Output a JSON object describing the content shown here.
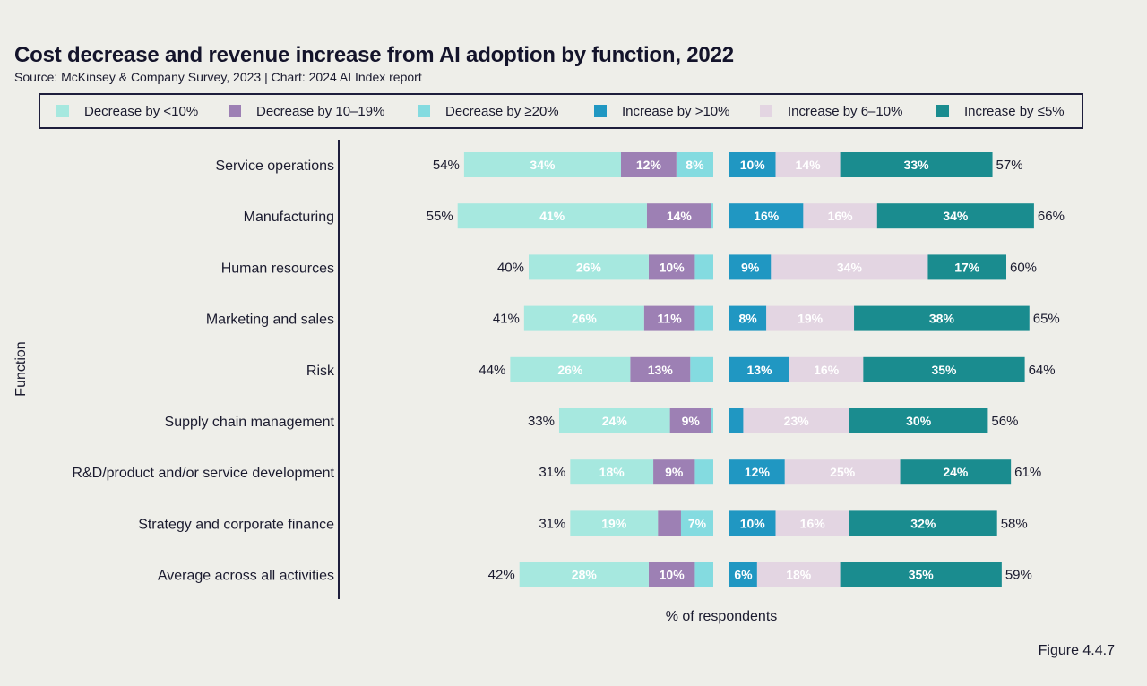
{
  "title": "Cost decrease and revenue increase from AI adoption by function, 2022",
  "subtitle": "Source: McKinsey & Company Survey, 2023 | Chart: 2024 AI Index report",
  "figure_label": "Figure 4.4.7",
  "legend": [
    {
      "label": "Decrease by <10%",
      "color": "#a6e8df"
    },
    {
      "label": "Decrease by 10–19%",
      "color": "#9d80b4"
    },
    {
      "label": "Decrease by ≥20%",
      "color": "#84dbe0"
    },
    {
      "label": "Increase by >10%",
      "color": "#2097c2"
    },
    {
      "label": "Increase by 6–10%",
      "color": "#e3d5e2"
    },
    {
      "label": "Increase by ≤5%",
      "color": "#1a8c8f"
    }
  ],
  "chart_data": {
    "type": "bar",
    "orientation": "horizontal-diverging",
    "title": "Cost decrease and revenue increase from AI adoption by function, 2022",
    "ylabel": "Function",
    "xlabel": "% of respondents",
    "categories": [
      "Service operations",
      "Manufacturing",
      "Human resources",
      "Marketing and sales",
      "Risk",
      "Supply chain management",
      "R&D/product and/or service development",
      "Strategy and corporate finance",
      "Average across all activities"
    ],
    "cost_decrease": {
      "totals": [
        "54%",
        "55%",
        "40%",
        "41%",
        "44%",
        "33%",
        "31%",
        "31%",
        "42%"
      ],
      "series": [
        {
          "name": "Decrease by <10%",
          "values": [
            34,
            41,
            26,
            26,
            26,
            24,
            18,
            19,
            28
          ],
          "labels": [
            "34%",
            "41%",
            "26%",
            "26%",
            "26%",
            "24%",
            "18%",
            "19%",
            "28%"
          ]
        },
        {
          "name": "Decrease by 10–19%",
          "values": [
            12,
            14,
            10,
            11,
            13,
            9,
            9,
            5,
            10
          ],
          "labels": [
            "12%",
            "14%",
            "10%",
            "11%",
            "13%",
            "9%",
            "9%",
            "",
            "10%"
          ]
        },
        {
          "name": "Decrease by ≥20%",
          "values": [
            8,
            0.4,
            4,
            4,
            5,
            0.4,
            4,
            7,
            4
          ],
          "labels": [
            "8%",
            "",
            "",
            "",
            "",
            "",
            "",
            "7%",
            ""
          ]
        }
      ]
    },
    "revenue_increase": {
      "totals": [
        "57%",
        "66%",
        "60%",
        "65%",
        "64%",
        "56%",
        "61%",
        "58%",
        "59%"
      ],
      "series": [
        {
          "name": "Increase by >10%",
          "values": [
            10,
            16,
            9,
            8,
            13,
            3,
            12,
            10,
            6
          ],
          "labels": [
            "10%",
            "16%",
            "9%",
            "8%",
            "13%",
            "",
            "12%",
            "10%",
            "6%"
          ]
        },
        {
          "name": "Increase by 6–10%",
          "values": [
            14,
            16,
            34,
            19,
            16,
            23,
            25,
            16,
            18
          ],
          "labels": [
            "14%",
            "16%",
            "34%",
            "19%",
            "16%",
            "23%",
            "25%",
            "16%",
            "18%"
          ]
        },
        {
          "name": "Increase by ≤5%",
          "values": [
            33,
            34,
            17,
            38,
            35,
            30,
            24,
            32,
            35
          ],
          "labels": [
            "33%",
            "34%",
            "17%",
            "38%",
            "35%",
            "30%",
            "24%",
            "32%",
            "35%"
          ]
        }
      ]
    }
  }
}
